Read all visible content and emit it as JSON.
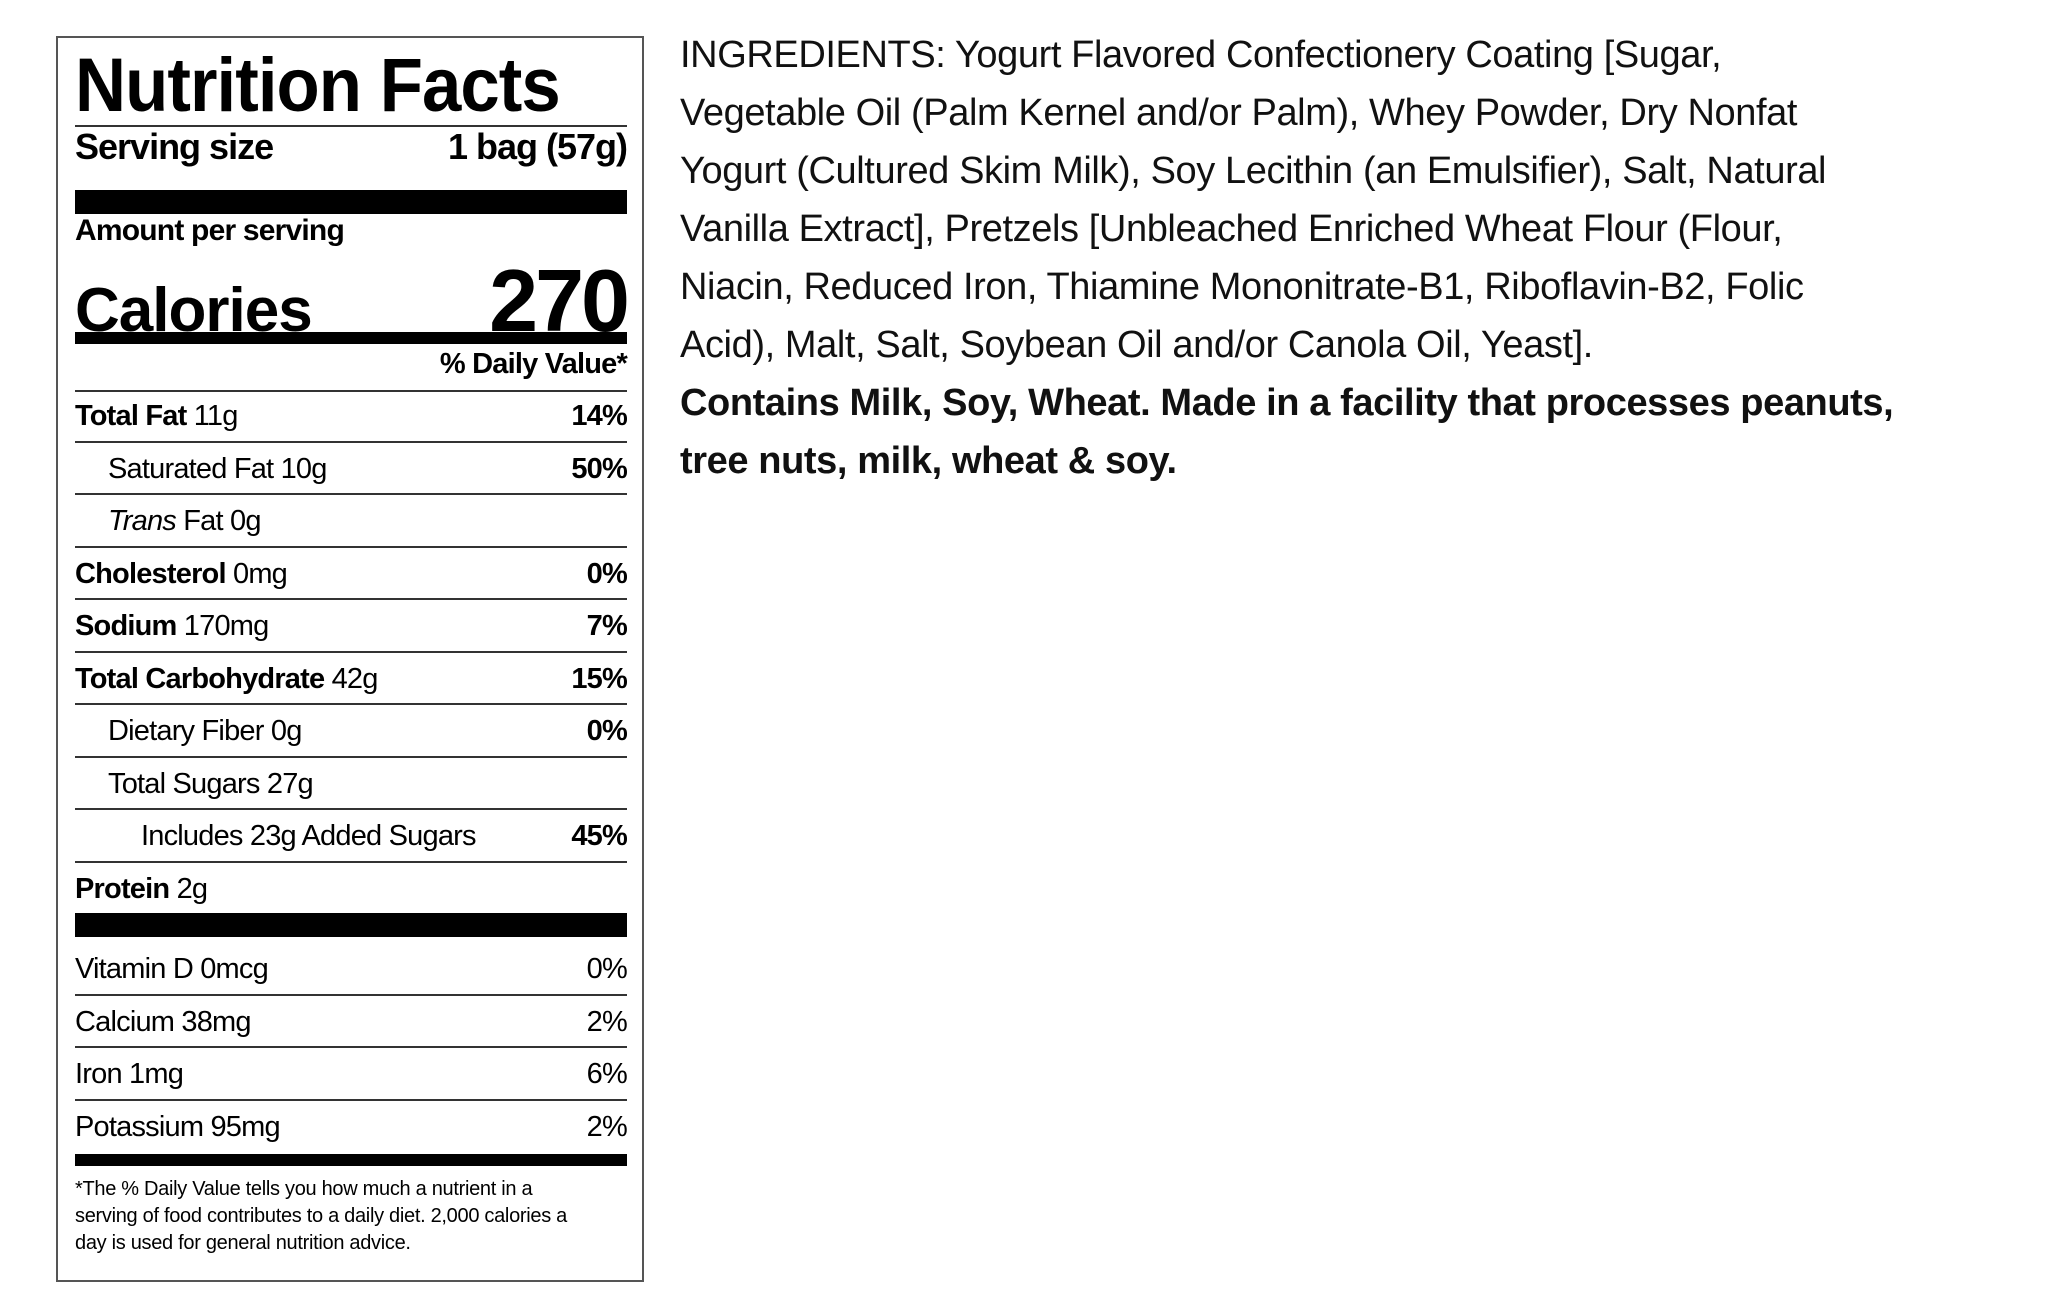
{
  "label": {
    "title": "Nutrition Facts",
    "serving_size_label": "Serving size",
    "serving_size_value": "1 bag (57g)",
    "amount_per_serving": "Amount per serving",
    "calories_label": "Calories",
    "calories_value": "270",
    "dv_header": "% Daily Value*",
    "nutrients": [
      {
        "name": "Total Fat",
        "amount": "11g",
        "dv": "14%",
        "bold": true,
        "indent": 0
      },
      {
        "name": "Saturated Fat",
        "amount": "10g",
        "dv": "50%",
        "bold": false,
        "indent": 1
      },
      {
        "name": "Trans",
        "name_suffix": "Fat",
        "amount": "0g",
        "dv": "",
        "bold": false,
        "indent": 1,
        "italic": true
      },
      {
        "name": "Cholesterol",
        "amount": "0mg",
        "dv": "0%",
        "bold": true,
        "indent": 0
      },
      {
        "name": "Sodium",
        "amount": "170mg",
        "dv": "7%",
        "bold": true,
        "indent": 0
      },
      {
        "name": "Total Carbohydrate",
        "amount": "42g",
        "dv": "15%",
        "bold": true,
        "indent": 0
      },
      {
        "name": "Dietary Fiber",
        "amount": "0g",
        "dv": "0%",
        "bold": false,
        "indent": 1
      },
      {
        "name": "Total Sugars",
        "amount": "27g",
        "dv": "",
        "bold": false,
        "indent": 1
      },
      {
        "name": "Includes 23g Added Sugars",
        "amount": "",
        "dv": "45%",
        "bold": false,
        "indent": 2
      },
      {
        "name": "Protein",
        "amount": "2g",
        "dv": "",
        "bold": true,
        "indent": 0
      }
    ],
    "vitamins": [
      {
        "name": "Vitamin D 0mcg",
        "dv": "0%"
      },
      {
        "name": "Calcium 38mg",
        "dv": "2%"
      },
      {
        "name": "Iron 1mg",
        "dv": "6%"
      },
      {
        "name": "Potassium 95mg",
        "dv": "2%"
      }
    ],
    "footnote_lines": [
      "*The % Daily Value tells you how much a nutrient in a",
      "serving of food contributes to a daily diet. 2,000 calories a",
      "day is used for general nutrition advice."
    ]
  },
  "ingredients": {
    "lines": [
      "INGREDIENTS: Yogurt Flavored Confectionery Coating [Sugar,",
      "Vegetable Oil (Palm Kernel and/or Palm), Whey Powder, Dry Nonfat",
      "Yogurt (Cultured Skim Milk), Soy Lecithin (an Emulsifier), Salt, Natural",
      "Vanilla Extract], Pretzels [Unbleached Enriched Wheat Flour (Flour,",
      "Niacin,  Reduced Iron, Thiamine Mononitrate-B1, Riboflavin-B2, Folic",
      "Acid), Malt, Salt, Soybean Oil and/or Canola Oil, Yeast]."
    ],
    "allergen_lines": [
      "Contains Milk, Soy, Wheat. Made in a facility that processes peanuts,",
      "tree nuts, milk, wheat & soy."
    ]
  }
}
